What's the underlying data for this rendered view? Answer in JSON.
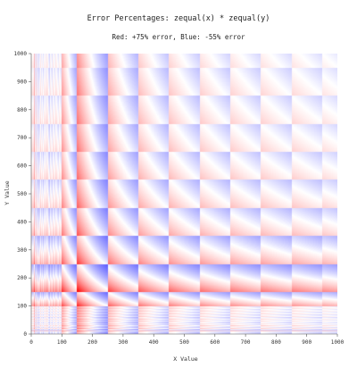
{
  "chart_data": {
    "type": "heatmap",
    "title": "Error Percentages: zequal(x) * zequal(y)",
    "subtitle": "Red: +75% error, Blue: -55% error",
    "xlabel": "X Value",
    "ylabel": "Y Value",
    "xlim": [
      0,
      1000
    ],
    "ylim": [
      0,
      1000
    ],
    "x_ticks": [
      0,
      100,
      200,
      300,
      400,
      500,
      600,
      700,
      800,
      900,
      1000
    ],
    "y_ticks": [
      0,
      100,
      200,
      300,
      400,
      500,
      600,
      700,
      800,
      900,
      1000
    ],
    "color_scale": {
      "max_error_percent": 75,
      "min_error_percent": -55,
      "high_color": "#ff0000",
      "low_color": "#0000ff",
      "zero_color": "#ffffff"
    },
    "x_bucket_edges": [
      0,
      1,
      2,
      3,
      4,
      5,
      6,
      7,
      8,
      9,
      10,
      15,
      20,
      25,
      30,
      35,
      40,
      45,
      50,
      60,
      70,
      80,
      90,
      100,
      150,
      250,
      350,
      450,
      550,
      650,
      750,
      850,
      950,
      1000
    ],
    "y_bucket_edges": [
      0,
      1,
      2,
      3,
      4,
      5,
      6,
      7,
      8,
      9,
      10,
      15,
      20,
      25,
      30,
      35,
      40,
      45,
      50,
      60,
      70,
      80,
      90,
      100,
      150,
      250,
      350,
      450,
      550,
      650,
      750,
      850,
      950,
      1000
    ]
  }
}
